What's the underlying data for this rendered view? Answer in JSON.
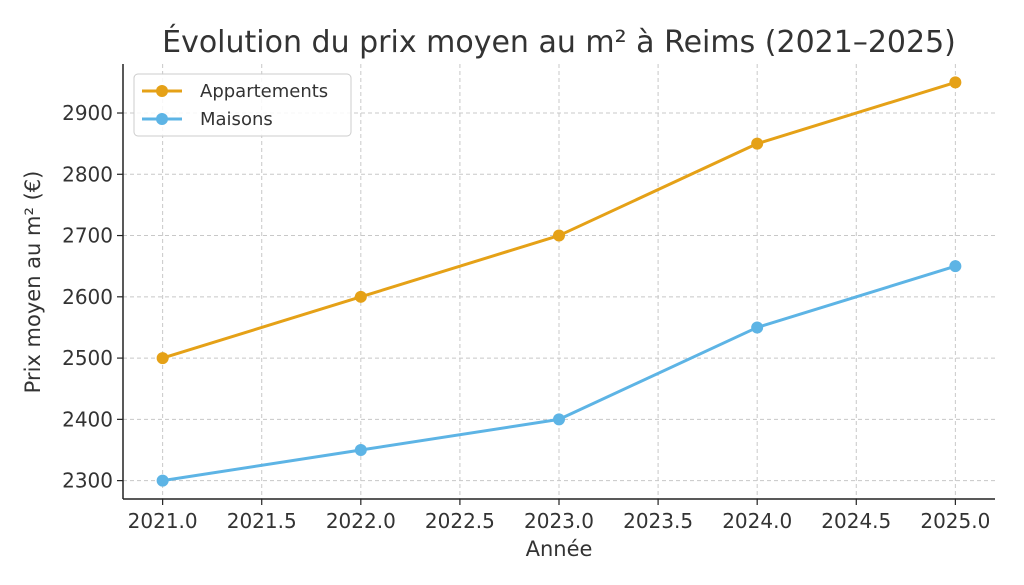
{
  "chart_data": {
    "type": "line",
    "title": "Évolution du prix moyen au m² à Reims (2021–2025)",
    "xlabel": "Année",
    "ylabel": "Prix moyen au m² (€)",
    "x": [
      2021,
      2022,
      2023,
      2024,
      2025
    ],
    "xlim": [
      2020.8,
      2025.2
    ],
    "ylim": [
      2270,
      2980
    ],
    "xticks": [
      "2021.0",
      "2021.5",
      "2022.0",
      "2022.5",
      "2023.0",
      "2023.5",
      "2024.0",
      "2024.5",
      "2025.0"
    ],
    "xtick_values": [
      2021.0,
      2021.5,
      2022.0,
      2022.5,
      2023.0,
      2023.5,
      2024.0,
      2024.5,
      2025.0
    ],
    "yticks": [
      "2300",
      "2400",
      "2500",
      "2600",
      "2700",
      "2800",
      "2900"
    ],
    "ytick_values": [
      2300,
      2400,
      2500,
      2600,
      2700,
      2800,
      2900
    ],
    "grid": true,
    "legend_position": "top-left",
    "series": [
      {
        "name": "Appartements",
        "values": [
          2500,
          2600,
          2700,
          2850,
          2950
        ],
        "color": "#E5A117"
      },
      {
        "name": "Maisons",
        "values": [
          2300,
          2350,
          2400,
          2550,
          2650
        ],
        "color": "#5DB4E5"
      }
    ]
  }
}
